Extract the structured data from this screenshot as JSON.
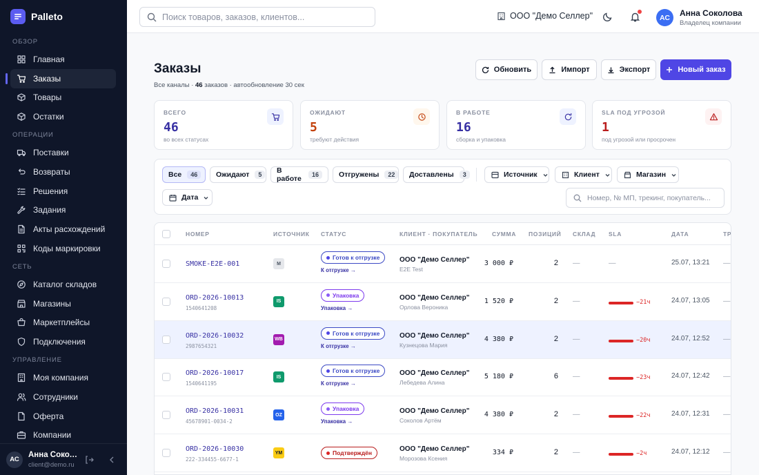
{
  "app": {
    "name": "Palleto"
  },
  "sidebar": {
    "sections": [
      {
        "title": "ОБЗОР",
        "items": [
          {
            "label": "Главная",
            "icon": "grid-icon"
          },
          {
            "label": "Заказы",
            "icon": "cart-icon",
            "active": true
          },
          {
            "label": "Товары",
            "icon": "box-icon"
          },
          {
            "label": "Остатки",
            "icon": "cube-icon"
          }
        ]
      },
      {
        "title": "ОПЕРАЦИИ",
        "items": [
          {
            "label": "Поставки",
            "icon": "truck-icon"
          },
          {
            "label": "Возвраты",
            "icon": "return-icon"
          },
          {
            "label": "Решения",
            "icon": "checklist-icon"
          },
          {
            "label": "Задания",
            "icon": "wrench-icon"
          },
          {
            "label": "Акты расхождений",
            "icon": "document-icon"
          },
          {
            "label": "Коды маркировки",
            "icon": "qr-icon"
          }
        ]
      },
      {
        "title": "СЕТЬ",
        "items": [
          {
            "label": "Каталог складов",
            "icon": "compass-icon"
          },
          {
            "label": "Магазины",
            "icon": "store-icon"
          },
          {
            "label": "Маркетплейсы",
            "icon": "marketplace-icon"
          },
          {
            "label": "Подключения",
            "icon": "shield-icon"
          }
        ]
      },
      {
        "title": "УПРАВЛЕНИЕ",
        "items": [
          {
            "label": "Моя компания",
            "icon": "building-icon"
          },
          {
            "label": "Сотрудники",
            "icon": "users-icon"
          },
          {
            "label": "Оферта",
            "icon": "file-icon"
          },
          {
            "label": "Компании",
            "icon": "briefcase-icon"
          }
        ]
      }
    ],
    "user": {
      "initials": "АС",
      "name": "Анна Соколова",
      "email": "client@demo.ru"
    }
  },
  "header": {
    "search_placeholder": "Поиск товаров, заказов, клиентов...",
    "org": "ООО \"Демо Селлер\"",
    "user": {
      "initials": "АС",
      "name": "Анна Соколова",
      "role": "Владелец компании"
    }
  },
  "page": {
    "title": "Заказы",
    "subtitle_pre": "Все каналы · ",
    "subtitle_count": "46",
    "subtitle_post": " заказов · автообновление 30 сек",
    "actions": {
      "refresh": "Обновить",
      "import": "Импорт",
      "export": "Экспорт",
      "new_order": "Новый заказ"
    }
  },
  "stats": [
    {
      "label": "ВСЕГО",
      "value": "46",
      "hint": "во всех статусах",
      "color": "#3730a3",
      "icon_bg": "#eef2ff",
      "icon": "cart-icon"
    },
    {
      "label": "ОЖИДАЮТ",
      "value": "5",
      "hint": "требуют действия",
      "color": "#c2410c",
      "icon_bg": "#fff7ed",
      "icon": "clock-icon"
    },
    {
      "label": "В РАБОТЕ",
      "value": "16",
      "hint": "сборка и упаковка",
      "color": "#3730a3",
      "icon_bg": "#eef2ff",
      "icon": "refresh-icon"
    },
    {
      "label": "SLA ПОД УГРОЗОЙ",
      "value": "1",
      "hint": "под угрозой или просрочен",
      "color": "#b91c1c",
      "icon_bg": "#fef2f2",
      "icon": "warning-icon"
    }
  ],
  "filters": {
    "tabs": [
      {
        "label": "Все",
        "count": "46",
        "active": true
      },
      {
        "label": "Ожидают",
        "count": "5"
      },
      {
        "label": "В работе",
        "count": "16"
      },
      {
        "label": "Отгружены",
        "count": "22"
      },
      {
        "label": "Доставлены",
        "count": "3"
      }
    ],
    "source": "Источник",
    "client": "Клиент",
    "store": "Магазин",
    "date": "Дата",
    "search_placeholder": "Номер, № МП, трекинг, покупатель..."
  },
  "table": {
    "columns": {
      "number": "НОМЕР",
      "source": "ИСТОЧНИК",
      "status": "СТАТУС",
      "client": "КЛИЕНТ · ПОКУПАТЕЛЬ",
      "sum": "СУММА",
      "items": "ПОЗИЦИЙ",
      "warehouse": "СКЛАД",
      "sla": "SLA",
      "date": "ДАТА",
      "tracking": "ТРЕ"
    },
    "dash": "—",
    "rows": [
      {
        "number": "SMOKE-E2E-001",
        "sub": "",
        "source": "M",
        "source_color": "#e5e7eb",
        "source_text": "#4b5563",
        "status": "Готов к отгрузке",
        "status_color": "#3b49c4",
        "dot": "#4f46e5",
        "next": "К отгрузке →",
        "client": "ООО \"Демо Селлер\"",
        "buyer": "E2E Test",
        "sum": "3 000 ₽",
        "items": "2",
        "sla": "",
        "sla_level": 0,
        "date": "25.07, 13:21",
        "highlight": false
      },
      {
        "number": "ORD-2026-10013",
        "sub": "1540641208",
        "source": "IS",
        "source_color": "#0f9a6c",
        "source_text": "#ffffff",
        "status": "Упаковка",
        "status_color": "#7c3aed",
        "dot": "#8b5cf6",
        "next": "Упаковка →",
        "client": "ООО \"Демо Селлер\"",
        "buyer": "Орлова Вероника",
        "sum": "1 520 ₽",
        "items": "2",
        "sla": "−21ч",
        "sla_level": 1,
        "date": "24.07, 13:05",
        "highlight": false
      },
      {
        "number": "ORD-2026-10032",
        "sub": "2987654321",
        "source": "WB",
        "source_color": "#a21caf",
        "source_text": "#ffffff",
        "status": "Готов к отгрузке",
        "status_color": "#3b49c4",
        "dot": "#4f46e5",
        "next": "К отгрузке →",
        "client": "ООО \"Демо Селлер\"",
        "buyer": "Кузнецова Мария",
        "sum": "4 380 ₽",
        "items": "2",
        "sla": "−20ч",
        "sla_level": 1,
        "date": "24.07, 12:52",
        "highlight": true
      },
      {
        "number": "ORD-2026-10017",
        "sub": "1540641195",
        "source": "IS",
        "source_color": "#0f9a6c",
        "source_text": "#ffffff",
        "status": "Готов к отгрузке",
        "status_color": "#3b49c4",
        "dot": "#4f46e5",
        "next": "К отгрузке →",
        "client": "ООО \"Демо Селлер\"",
        "buyer": "Лебедева Алина",
        "sum": "5 180 ₽",
        "items": "6",
        "sla": "−23ч",
        "sla_level": 1,
        "date": "24.07, 12:42",
        "highlight": false
      },
      {
        "number": "ORD-2026-10031",
        "sub": "45678901-0034-2",
        "source": "OZ",
        "source_color": "#2563eb",
        "source_text": "#ffffff",
        "status": "Упаковка",
        "status_color": "#7c3aed",
        "dot": "#8b5cf6",
        "next": "Упаковка →",
        "client": "ООО \"Демо Селлер\"",
        "buyer": "Соколов Артём",
        "sum": "4 380 ₽",
        "items": "2",
        "sla": "−22ч",
        "sla_level": 1,
        "date": "24.07, 12:31",
        "highlight": false
      },
      {
        "number": "ORD-2026-10030",
        "sub": "222-334455-6677-1",
        "source": "YM",
        "source_color": "#facc15",
        "source_text": "#111827",
        "status": "Подтверждён",
        "status_color": "#b91c1c",
        "dot": "#dc2626",
        "next": "",
        "client": "ООО \"Демо Селлер\"",
        "buyer": "Морозова Ксения",
        "sum": "334 ₽",
        "items": "2",
        "sla": "−2ч",
        "sla_level": 1,
        "date": "24.07, 12:12",
        "highlight": false
      }
    ]
  }
}
